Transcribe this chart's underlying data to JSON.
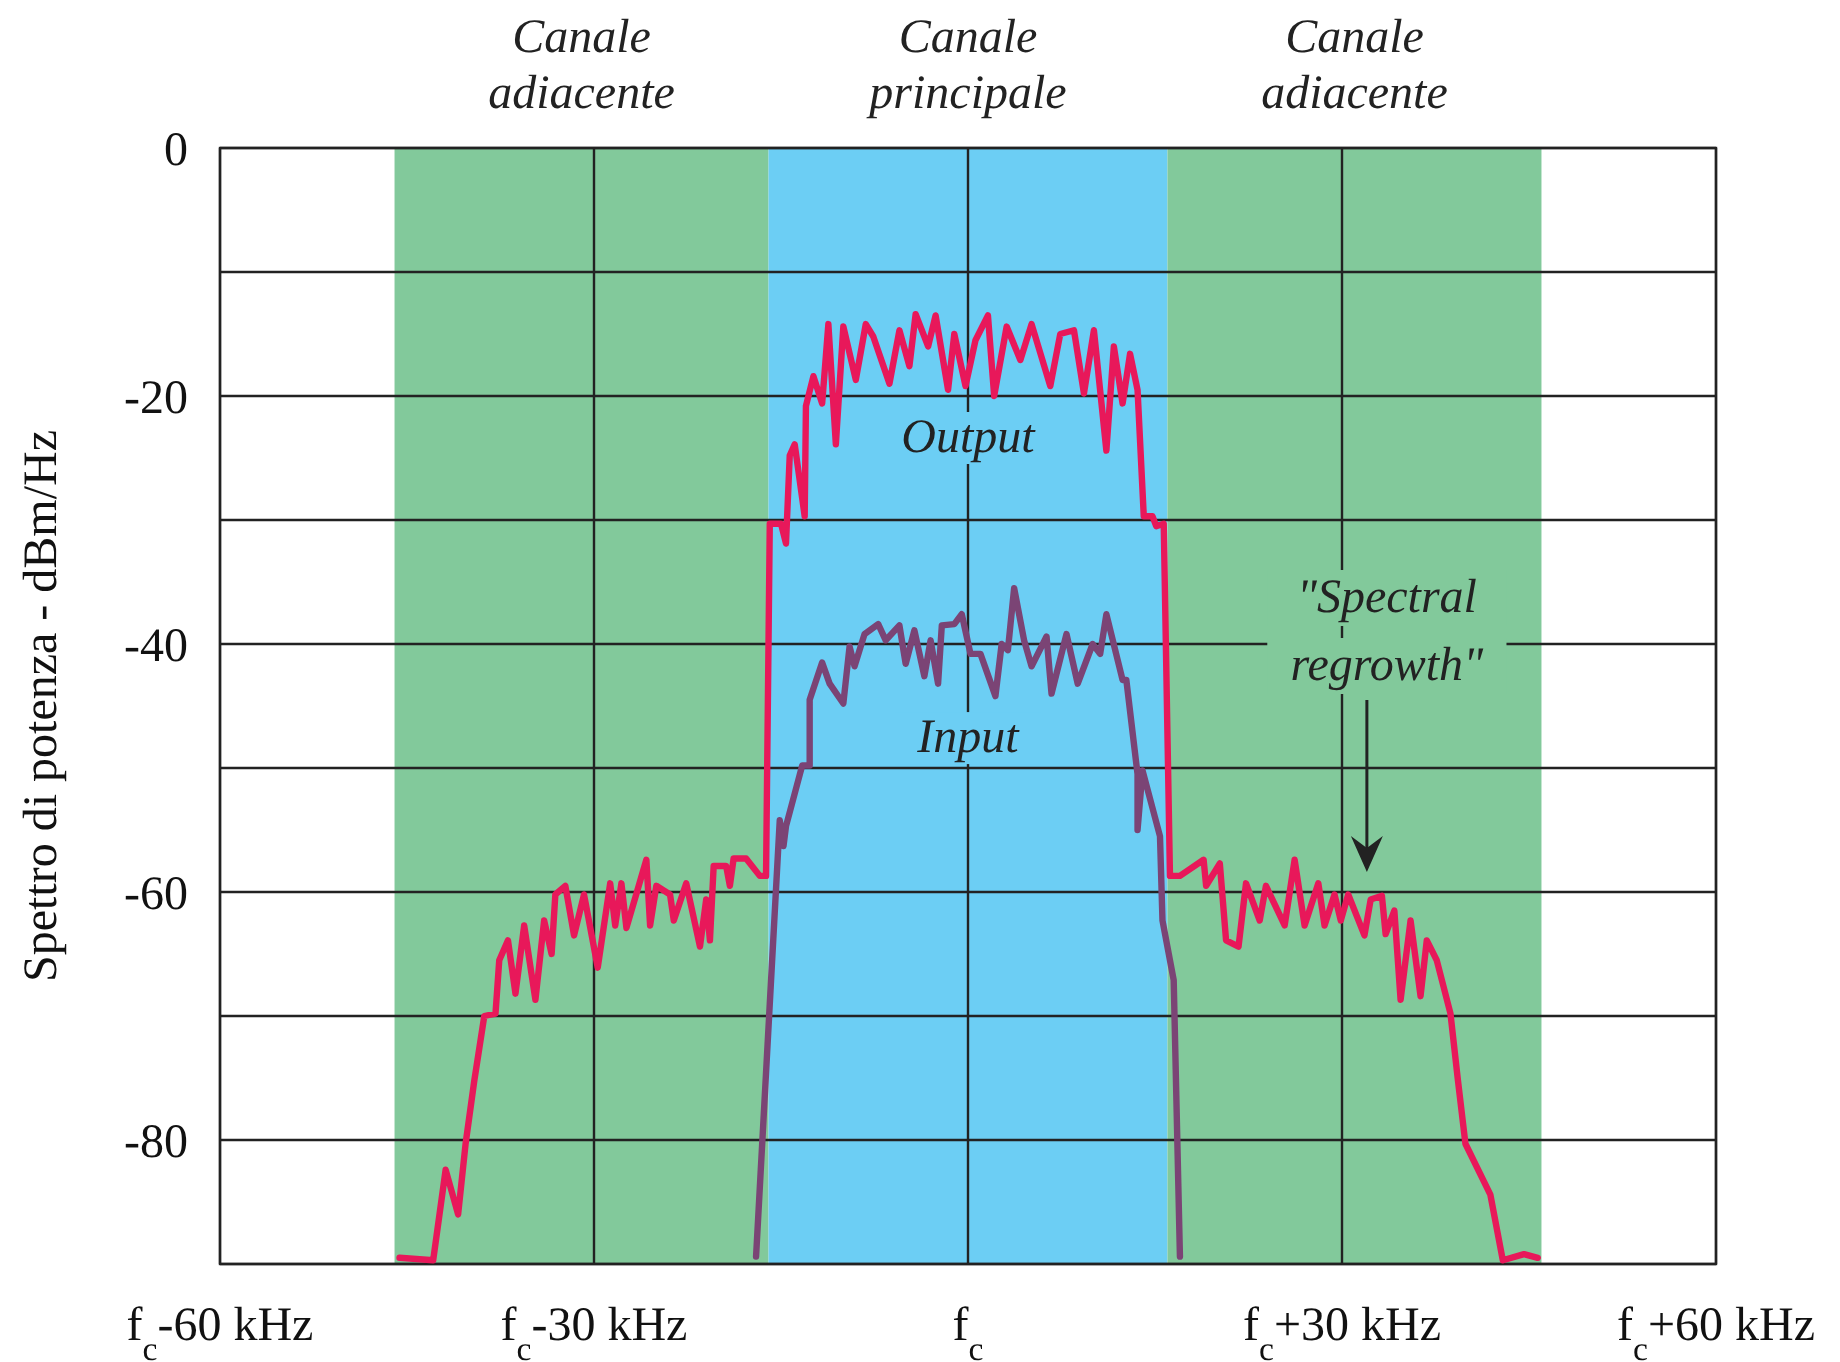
{
  "chart_data": {
    "type": "line",
    "ylabel": "Spettro di potenza - dBm/Hz",
    "xlim": [
      -60,
      60
    ],
    "ylim": [
      -90,
      0
    ],
    "xticks": [
      {
        "value": -60,
        "label": "f$_{c}$-60 kHz"
      },
      {
        "value": -30,
        "label": "f$_{c}$-30 kHz"
      },
      {
        "value": 0,
        "label": "f$_{c}$"
      },
      {
        "value": 30,
        "label": "f$_{c}$+30 kHz"
      },
      {
        "value": 60,
        "label": "f$_{c}$+60 kHz"
      }
    ],
    "yticks": [
      0,
      {
        "value": -10,
        "label": null
      },
      -20,
      {
        "value": -30,
        "label": null
      },
      -40,
      {
        "value": -50,
        "label": null
      },
      -60,
      {
        "value": -70,
        "label": null
      },
      -80,
      {
        "value": -90,
        "label": null
      }
    ],
    "grid": true,
    "legend": false,
    "line_style": "solid",
    "marker": "none",
    "bands": [
      {
        "axis": "x",
        "from": -46,
        "to": -16,
        "label": "Canale adiacente",
        "color": "#82c99b"
      },
      {
        "axis": "x",
        "from": -16,
        "to": 16,
        "label": "Canale principale",
        "color": "#6ccef4"
      },
      {
        "axis": "x",
        "from": 16,
        "to": 46,
        "label": "Canale adiacente",
        "color": "#82c99b"
      }
    ],
    "annotations": [
      "\"Spectral regrowth\""
    ],
    "series": [
      {
        "name": "Output",
        "color": "#e8185a",
        "x": [
          -45.6,
          -42.9,
          -41.9,
          -40.9,
          -40.3,
          -39.6,
          -38.8,
          -37.9,
          -37.6,
          -36.9,
          -36.3,
          -35.6,
          -34.7,
          -34.0,
          -33.4,
          -33.1,
          -32.3,
          -31.6,
          -30.8,
          -29.7,
          -28.7,
          -28.3,
          -27.8,
          -27.4,
          -25.8,
          -25.5,
          -25.0,
          -23.9,
          -23.6,
          -22.6,
          -21.5,
          -21.0,
          -20.7,
          -20.4,
          -19.4,
          -19.1,
          -18.8,
          -17.8,
          -16.7,
          -16.2,
          -15.9,
          -15.0,
          -14.6,
          -14.3,
          -13.9,
          -13.1,
          -13.0,
          -12.4,
          -11.7,
          -11.2,
          -10.6,
          -10.0,
          -9.0,
          -8.2,
          -7.6,
          -6.3,
          -5.5,
          -4.7,
          -4.2,
          -3.2,
          -2.6,
          -1.6,
          -1.1,
          -0.2,
          0.6,
          1.6,
          2.1,
          3.1,
          4.2,
          5.1,
          6.6,
          7.4,
          8.5,
          9.3,
          10.1,
          11.1,
          11.7,
          12.4,
          13.0,
          13.6,
          14.1,
          14.8,
          15.1,
          15.7,
          16.2,
          17.0,
          18.9,
          19.1,
          20.2,
          20.7,
          21.7,
          22.3,
          23.4,
          23.9,
          25.4,
          26.2,
          27.0,
          28.1,
          28.6,
          29.4,
          29.9,
          30.5,
          31.8,
          32.3,
          33.2,
          33.5,
          34.2,
          34.7,
          35.5,
          36.3,
          36.8,
          37.6,
          38.7,
          39.3,
          39.9,
          41.9,
          42.9,
          44.6,
          45.7
        ],
        "values": [
          -89.5,
          -89.7,
          -82.4,
          -86.0,
          -80.3,
          -75.2,
          -70.0,
          -69.8,
          -65.5,
          -63.9,
          -68.2,
          -62.7,
          -68.7,
          -62.3,
          -65.0,
          -60.2,
          -59.5,
          -63.5,
          -60.2,
          -66.1,
          -59.3,
          -62.7,
          -59.3,
          -62.9,
          -57.4,
          -62.7,
          -59.5,
          -60.2,
          -62.3,
          -59.3,
          -64.4,
          -60.6,
          -63.9,
          -57.9,
          -57.9,
          -59.5,
          -57.3,
          -57.3,
          -58.7,
          -58.7,
          -30.3,
          -30.3,
          -31.9,
          -24.8,
          -23.9,
          -29.7,
          -20.8,
          -18.4,
          -20.6,
          -14.2,
          -23.9,
          -14.4,
          -18.7,
          -14.2,
          -15.2,
          -19.0,
          -14.7,
          -17.6,
          -13.4,
          -16.0,
          -13.5,
          -19.5,
          -15.0,
          -19.2,
          -15.5,
          -13.5,
          -20.0,
          -14.4,
          -17.1,
          -14.2,
          -19.2,
          -15.0,
          -14.7,
          -19.8,
          -14.7,
          -24.4,
          -16.0,
          -20.6,
          -16.6,
          -19.5,
          -29.7,
          -29.7,
          -30.5,
          -30.3,
          -58.7,
          -58.7,
          -57.4,
          -59.5,
          -57.7,
          -63.9,
          -64.4,
          -59.3,
          -62.3,
          -59.5,
          -62.7,
          -57.4,
          -62.7,
          -59.3,
          -62.7,
          -60.2,
          -62.3,
          -60.2,
          -63.5,
          -60.6,
          -60.3,
          -63.4,
          -61.5,
          -68.7,
          -62.3,
          -68.4,
          -63.9,
          -65.5,
          -69.8,
          -75.2,
          -80.3,
          -84.4,
          -89.7,
          -89.2,
          -89.5
        ]
      },
      {
        "name": "Input",
        "color": "#7b4475",
        "x": [
          -17.0,
          -15.1,
          -14.8,
          -14.6,
          -13.3,
          -12.7,
          -12.7,
          -11.7,
          -11.1,
          -10.0,
          -9.5,
          -9.1,
          -8.3,
          -7.2,
          -6.6,
          -5.5,
          -5.0,
          -4.3,
          -3.5,
          -3.0,
          -2.4,
          -2.1,
          -1.1,
          -0.5,
          0.2,
          1.0,
          2.2,
          2.7,
          3.2,
          3.7,
          4.5,
          5.1,
          6.3,
          6.7,
          7.9,
          8.8,
          10.0,
          10.6,
          11.1,
          12.4,
          12.7,
          13.6,
          13.6,
          14.0,
          15.4,
          15.6,
          16.5,
          17.0
        ],
        "values": [
          -89.4,
          -54.2,
          -56.3,
          -54.7,
          -49.8,
          -49.8,
          -44.5,
          -41.5,
          -43.2,
          -44.8,
          -40.2,
          -41.8,
          -39.2,
          -38.4,
          -39.7,
          -38.5,
          -41.6,
          -38.9,
          -42.6,
          -39.7,
          -43.2,
          -38.5,
          -38.4,
          -37.6,
          -40.8,
          -40.8,
          -44.2,
          -40.0,
          -40.5,
          -35.5,
          -39.7,
          -41.8,
          -39.4,
          -44.0,
          -39.2,
          -43.2,
          -40.0,
          -40.8,
          -37.6,
          -42.9,
          -42.9,
          -50.5,
          -55.0,
          -50.2,
          -55.5,
          -62.3,
          -67.1,
          -89.4
        ]
      }
    ]
  }
}
